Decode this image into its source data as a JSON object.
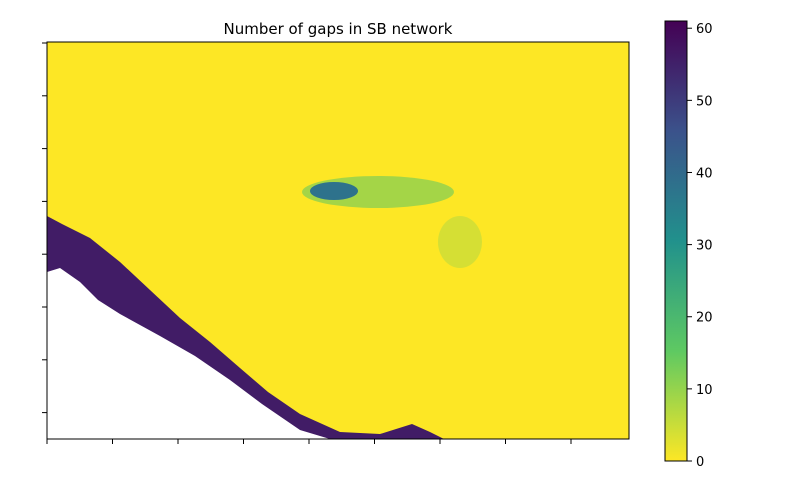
{
  "chart_data": {
    "type": "heatmap",
    "title": "Number of gaps in SB network",
    "xlabel": "",
    "ylabel": "",
    "x_tick_labels_visible": false,
    "y_tick_labels_visible": false,
    "grid": false,
    "colormap": "viridis",
    "colormap_reversed": true,
    "colorbar": {
      "min": 0,
      "max": 61,
      "ticks": [
        0,
        10,
        20,
        30,
        40,
        50,
        60
      ],
      "tick_labels": [
        "0",
        "10",
        "20",
        "30",
        "40",
        "50",
        "60"
      ],
      "placement": "right"
    },
    "background_value": 0,
    "regions": [
      {
        "name": "coastal band",
        "value": 56
      },
      {
        "name": "central hotspot",
        "value": 38
      },
      {
        "name": "hotspot halo",
        "value": 16
      },
      {
        "name": "scattered gaps",
        "value": 7
      },
      {
        "name": "no-data area",
        "value": null
      }
    ]
  }
}
